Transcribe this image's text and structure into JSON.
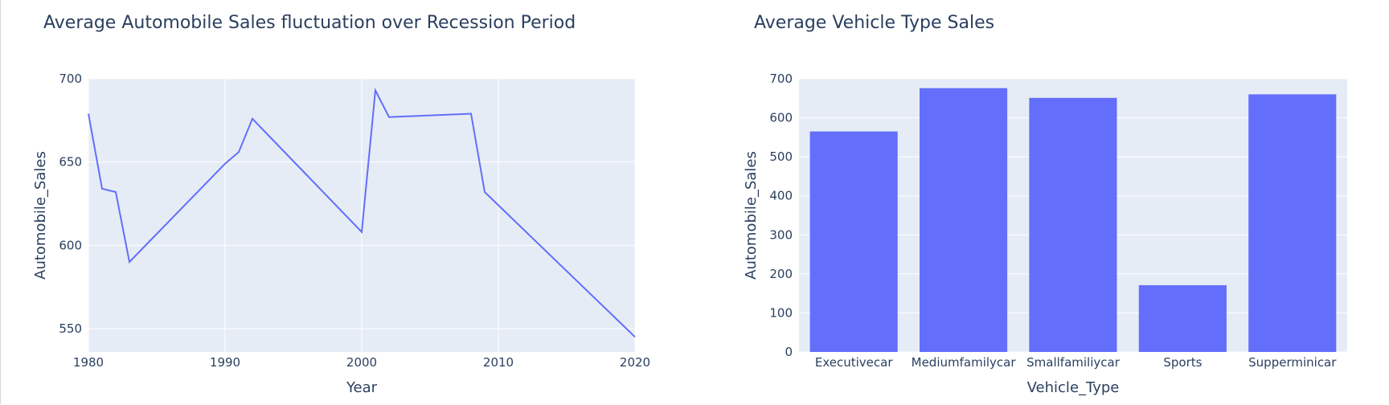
{
  "chart_data": [
    {
      "type": "line",
      "title": "Average Automobile Sales fluctuation over Recession Period",
      "xlabel": "Year",
      "ylabel": "Automobile_Sales",
      "xlim": [
        1980,
        2020
      ],
      "ylim": [
        536,
        700
      ],
      "xticks": [
        1980,
        1990,
        2000,
        2010,
        2020
      ],
      "yticks": [
        550,
        600,
        650,
        700
      ],
      "grid": true,
      "color": "#636efa",
      "plot_bg": "#e5ecf6",
      "x": [
        1980,
        1981,
        1982,
        1983,
        1990,
        1991,
        1992,
        2000,
        2001,
        2002,
        2008,
        2009,
        2020
      ],
      "y": [
        679,
        634,
        632,
        590,
        649,
        656,
        676,
        608,
        693,
        677,
        679,
        632,
        545
      ]
    },
    {
      "type": "bar",
      "title": "Average Vehicle Type Sales",
      "xlabel": "Vehicle_Type",
      "ylabel": "Automobile_Sales",
      "ylim": [
        0,
        700
      ],
      "yticks": [
        0,
        100,
        200,
        300,
        400,
        500,
        600,
        700
      ],
      "grid": true,
      "color": "#636efa",
      "plot_bg": "#e5ecf6",
      "categories": [
        "Executivecar",
        "Mediumfamilycar",
        "Smallfamiliycar",
        "Sports",
        "Supperminicar"
      ],
      "values": [
        565,
        676,
        651,
        171,
        660
      ]
    }
  ]
}
